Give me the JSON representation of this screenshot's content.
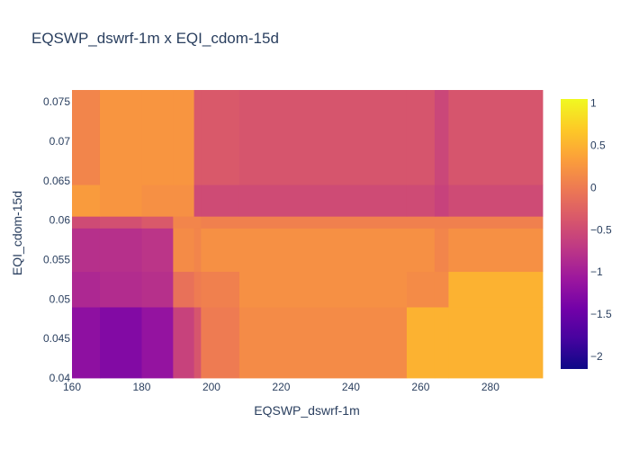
{
  "chart_data": {
    "type": "heatmap",
    "title": "EQSWP_dswrf-1m x EQI_cdom-15d",
    "xlabel": "EQSWP_dswrf-1m",
    "ylabel": "EQI_cdom-15d",
    "xlim": [
      160,
      295
    ],
    "ylim": [
      0.04,
      0.0765
    ],
    "x_ticks": [
      160,
      180,
      200,
      220,
      240,
      260,
      280
    ],
    "x_tick_labels": [
      "160",
      "180",
      "200",
      "220",
      "240",
      "260",
      "280"
    ],
    "y_ticks": [
      0.04,
      0.045,
      0.05,
      0.055,
      0.06,
      0.065,
      0.07,
      0.075
    ],
    "y_tick_labels": [
      "0.04",
      "0.045",
      "0.05",
      "0.055",
      "0.06",
      "0.065",
      "0.07",
      "0.075"
    ],
    "x_bins": [
      160,
      168,
      180,
      189,
      195,
      197,
      208,
      256,
      264,
      268,
      295
    ],
    "y_bins": [
      0.04,
      0.049,
      0.0535,
      0.059,
      0.0605,
      0.0645,
      0.0765
    ],
    "z": [
      [
        -1.2,
        -1.3,
        -1.15,
        -0.6,
        -0.4,
        0.0,
        0.15,
        0.5,
        0.5,
        0.5
      ],
      [
        -0.9,
        -0.85,
        -0.8,
        -0.1,
        0.0,
        0.05,
        0.2,
        0.15,
        0.15,
        0.5
      ],
      [
        -0.8,
        -0.8,
        -0.75,
        0.15,
        0.1,
        0.2,
        0.2,
        0.2,
        0.1,
        0.2
      ],
      [
        -0.5,
        -0.45,
        -0.35,
        0.1,
        0.1,
        0.05,
        0.05,
        0.05,
        0.05,
        0.05
      ],
      [
        0.3,
        0.25,
        0.2,
        0.2,
        -0.5,
        -0.5,
        -0.5,
        -0.5,
        -0.6,
        -0.5
      ],
      [
        0.1,
        0.25,
        0.25,
        0.25,
        -0.35,
        -0.35,
        -0.4,
        -0.4,
        -0.55,
        -0.4
      ]
    ],
    "colorscale": {
      "zmin": -2.15,
      "zmax": 1.05,
      "ticks": [
        1,
        0.5,
        0,
        -0.5,
        -1,
        -1.5,
        -2
      ],
      "tick_labels": [
        "1",
        "0.5",
        "0",
        "−0.5",
        "−1",
        "−1.5",
        "−2"
      ],
      "colors": [
        "#0d0887",
        "#46039f",
        "#7201a8",
        "#9c179e",
        "#bd3786",
        "#d8576b",
        "#ed7953",
        "#fb9f3a",
        "#fdca26",
        "#f0f921"
      ]
    }
  }
}
